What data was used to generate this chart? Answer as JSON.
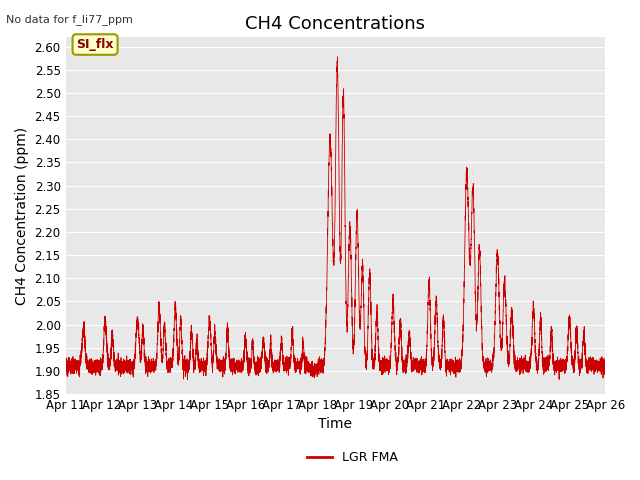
{
  "title": "CH4 Concentrations",
  "top_left_note": "No data for f_li77_ppm",
  "xlabel": "Time",
  "ylabel": "CH4 Concentration (ppm)",
  "ylim": [
    1.85,
    2.62
  ],
  "yticks": [
    1.85,
    1.9,
    1.95,
    2.0,
    2.05,
    2.1,
    2.15,
    2.2,
    2.25,
    2.3,
    2.35,
    2.4,
    2.45,
    2.5,
    2.55,
    2.6
  ],
  "xtick_labels": [
    "Apr 11",
    "Apr 12",
    "Apr 13",
    "Apr 14",
    "Apr 15",
    "Apr 16",
    "Apr 17",
    "Apr 18",
    "Apr 19",
    "Apr 20",
    "Apr 21",
    "Apr 22",
    "Apr 23",
    "Apr 24",
    "Apr 25",
    "Apr 26"
  ],
  "line_color": "#cc0000",
  "line_label": "LGR FMA",
  "legend_box_color": "#ffffcc",
  "legend_box_edge": "#999900",
  "legend_box_text": "SI_flx",
  "legend_box_text_color": "#8b0000",
  "fig_bg_color": "#ffffff",
  "plot_bg_color": "#e8e8e8",
  "grid_color": "#ffffff",
  "title_fontsize": 13,
  "axis_label_fontsize": 10,
  "tick_fontsize": 8.5
}
